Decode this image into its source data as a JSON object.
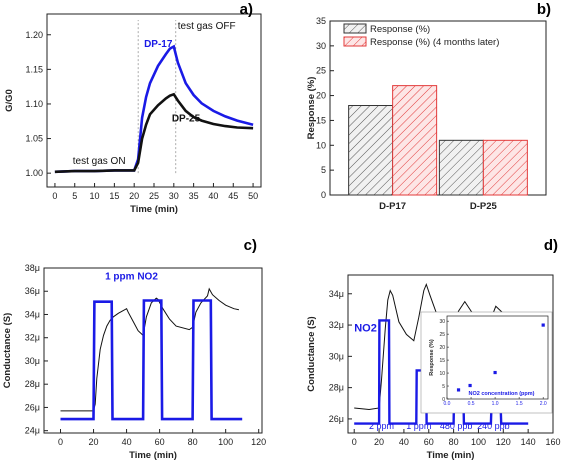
{
  "colors": {
    "blue": "#1a1ae6",
    "black": "#111111",
    "red": "#e23a3a",
    "hatch_red_bg": "#fde6e6",
    "hatch_gray_bg": "#f1f1f1"
  },
  "chart_data": [
    {
      "panel": "a)",
      "type": "line",
      "xlabel": "Time (min)",
      "ylabel": "G/G0",
      "xlim": [
        -2,
        52
      ],
      "ylim": [
        0.98,
        1.23
      ],
      "xticks": [
        0,
        5,
        10,
        15,
        20,
        25,
        30,
        35,
        40,
        45,
        50
      ],
      "yticks": [
        1.0,
        1.05,
        1.1,
        1.15,
        1.2
      ],
      "ytick_labels": [
        "1.00",
        "1.05",
        "1.10",
        "1.15",
        "1.20"
      ],
      "vlines": [
        21,
        30.5
      ],
      "annotations": [
        {
          "id": "gas_on",
          "text": "test gas ON",
          "x": 4.5,
          "y": 1.013
        },
        {
          "id": "gas_off",
          "text": "test gas OFF",
          "x": 31,
          "y": 1.208
        }
      ],
      "series": [
        {
          "name": "DP-17",
          "color": "#1a1ae6",
          "points": [
            [
              0,
              1.002
            ],
            [
              5,
              1.003
            ],
            [
              10,
              1.003
            ],
            [
              15,
              1.004
            ],
            [
              19,
              1.004
            ],
            [
              20,
              1.004
            ],
            [
              21,
              1.02
            ],
            [
              22,
              1.08
            ],
            [
              23,
              1.11
            ],
            [
              24,
              1.13
            ],
            [
              26,
              1.155
            ],
            [
              28,
              1.172
            ],
            [
              29,
              1.18
            ],
            [
              30,
              1.183
            ],
            [
              31,
              1.16
            ],
            [
              33,
              1.13
            ],
            [
              35,
              1.113
            ],
            [
              37,
              1.101
            ],
            [
              40,
              1.09
            ],
            [
              43,
              1.082
            ],
            [
              46,
              1.076
            ],
            [
              50,
              1.07
            ]
          ]
        },
        {
          "name": "DP-25",
          "color": "#111111",
          "points": [
            [
              0,
              1.002
            ],
            [
              5,
              1.003
            ],
            [
              10,
              1.003
            ],
            [
              15,
              1.004
            ],
            [
              19,
              1.004
            ],
            [
              20,
              1.004
            ],
            [
              21,
              1.015
            ],
            [
              22,
              1.05
            ],
            [
              23,
              1.07
            ],
            [
              24,
              1.085
            ],
            [
              26,
              1.098
            ],
            [
              28,
              1.108
            ],
            [
              29,
              1.112
            ],
            [
              30,
              1.114
            ],
            [
              31,
              1.105
            ],
            [
              33,
              1.09
            ],
            [
              35,
              1.081
            ],
            [
              37,
              1.076
            ],
            [
              40,
              1.071
            ],
            [
              43,
              1.068
            ],
            [
              46,
              1.066
            ],
            [
              50,
              1.065
            ]
          ]
        }
      ]
    },
    {
      "panel": "b)",
      "type": "bar",
      "xlabel": "",
      "ylabel": "Response (%)",
      "ylim": [
        0,
        35
      ],
      "yticks": [
        0,
        5,
        10,
        15,
        20,
        25,
        30,
        35
      ],
      "categories": [
        "D-P17",
        "D-P25"
      ],
      "series": [
        {
          "name": "Response (%)",
          "color": "#333333",
          "values": [
            18,
            11
          ]
        },
        {
          "name": "Response (%) (4 months later)",
          "color": "#e23a3a",
          "values": [
            22,
            11
          ]
        }
      ]
    },
    {
      "panel": "c)",
      "type": "line",
      "xlabel": "Time (min)",
      "ylabel": "Conductance (S)",
      "xlim": [
        -10,
        122
      ],
      "ylim": [
        23.8,
        38
      ],
      "xticks": [
        0,
        20,
        40,
        60,
        80,
        100,
        120
      ],
      "yticks": [
        24,
        26,
        28,
        30,
        32,
        34,
        36,
        38
      ],
      "ytick_labels": [
        "24μ",
        "26μ",
        "28μ",
        "30μ",
        "32μ",
        "34μ",
        "36μ",
        "38μ"
      ],
      "annotation": "1 ppm NO2",
      "series": [
        {
          "name": "",
          "color": "#111111",
          "points": [
            [
              0,
              25.7
            ],
            [
              10,
              25.7
            ],
            [
              20,
              25.7
            ],
            [
              21,
              26.3
            ],
            [
              22,
              28.5
            ],
            [
              24,
              31
            ],
            [
              26,
              32.2
            ],
            [
              28,
              33
            ],
            [
              30,
              33.5
            ],
            [
              32,
              33.8
            ],
            [
              35,
              34.1
            ],
            [
              40,
              34.5
            ],
            [
              41,
              34.2
            ],
            [
              44,
              33.4
            ],
            [
              47,
              32.6
            ],
            [
              50,
              32.2
            ],
            [
              52,
              33.8
            ],
            [
              55,
              35.0
            ],
            [
              58,
              35.4
            ],
            [
              59,
              35.3
            ],
            [
              62,
              34.5
            ],
            [
              66,
              33.6
            ],
            [
              70,
              33.0
            ],
            [
              78,
              32.7
            ],
            [
              80,
              32.9
            ],
            [
              82,
              34.2
            ],
            [
              85,
              35.0
            ],
            [
              89,
              35.6
            ],
            [
              90,
              36.2
            ],
            [
              92,
              35.7
            ],
            [
              96,
              35.2
            ],
            [
              100,
              34.8
            ],
            [
              105,
              34.5
            ],
            [
              108,
              34.4
            ]
          ]
        },
        {
          "name": "",
          "color": "#1a1ae6",
          "points": [
            [
              0,
              25.0
            ],
            [
              20,
              25.0
            ],
            [
              20.5,
              35.1
            ],
            [
              31,
              35.1
            ],
            [
              31.5,
              25.0
            ],
            [
              50,
              25.0
            ],
            [
              50.5,
              35.2
            ],
            [
              61,
              35.2
            ],
            [
              61.5,
              25.0
            ],
            [
              80,
              25.0
            ],
            [
              80.5,
              35.2
            ],
            [
              91,
              35.2
            ],
            [
              91.5,
              25.0
            ],
            [
              110,
              25.0
            ]
          ]
        }
      ]
    },
    {
      "panel": "d)",
      "type": "line",
      "xlabel": "Time (min)",
      "ylabel": "Conductance (S)",
      "xlim": [
        -5,
        160
      ],
      "ylim": [
        25.1,
        35.2
      ],
      "xticks": [
        0,
        20,
        40,
        60,
        80,
        100,
        120,
        140,
        160
      ],
      "yticks": [
        26,
        28,
        30,
        32,
        34
      ],
      "ytick_labels": [
        "26μ",
        "28μ",
        "30μ",
        "32μ",
        "34μ"
      ],
      "annotation": "NO2",
      "concentration_labels": [
        "2 ppm",
        "1 ppm",
        "480 ppb",
        "240 ppb"
      ],
      "series": [
        {
          "name": "",
          "color": "#111111",
          "points": [
            [
              0,
              26.7
            ],
            [
              12,
              26.6
            ],
            [
              20,
              26.7
            ],
            [
              22,
              28.5
            ],
            [
              25,
              31.8
            ],
            [
              27,
              33.6
            ],
            [
              29,
              34.2
            ],
            [
              31,
              33.9
            ],
            [
              36,
              32.2
            ],
            [
              42,
              31.4
            ],
            [
              48,
              31.0
            ],
            [
              52,
              32.5
            ],
            [
              56,
              34.2
            ],
            [
              58,
              34.6
            ],
            [
              61,
              33.9
            ],
            [
              66,
              32.8
            ],
            [
              72,
              31.9
            ],
            [
              77,
              31.5
            ],
            [
              80,
              32.1
            ],
            [
              84,
              32.9
            ],
            [
              89,
              33.5
            ],
            [
              94,
              32.9
            ],
            [
              98,
              32.4
            ],
            [
              105,
              32.0
            ],
            [
              110,
              32.4
            ],
            [
              114,
              33.2
            ],
            [
              118,
              32.9
            ],
            [
              124,
              32.4
            ],
            [
              130,
              32.0
            ],
            [
              135,
              31.7
            ]
          ]
        },
        {
          "name": "",
          "color": "#1a1ae6",
          "points": [
            [
              0,
              25.7
            ],
            [
              20,
              25.7
            ],
            [
              20.3,
              32.3
            ],
            [
              28,
              32.3
            ],
            [
              28.3,
              25.7
            ],
            [
              50,
              25.7
            ],
            [
              50.3,
              29.1
            ],
            [
              58,
              29.1
            ],
            [
              58.3,
              25.7
            ],
            [
              80,
              25.7
            ],
            [
              80.3,
              27.2
            ],
            [
              88,
              27.2
            ],
            [
              88.3,
              25.7
            ],
            [
              110,
              25.7
            ],
            [
              110.3,
              26.5
            ],
            [
              118,
              26.5
            ],
            [
              118.3,
              25.7
            ],
            [
              140,
              25.7
            ]
          ]
        }
      ],
      "inset": {
        "type": "scatter",
        "xlabel": "NO2 concentration (ppm)",
        "ylabel": "Response (%)",
        "xlim": [
          0,
          2.1
        ],
        "ylim": [
          0,
          32
        ],
        "xticks": [
          0.0,
          0.5,
          1.0,
          1.5,
          2.0
        ],
        "xtick_labels": [
          "0.0",
          "0.5",
          "1.0",
          "1.5",
          "2.0"
        ],
        "yticks": [
          0,
          5,
          10,
          15,
          20,
          25,
          30
        ],
        "points": [
          [
            0.24,
            3.5
          ],
          [
            0.48,
            5.2
          ],
          [
            1.0,
            10.2
          ],
          [
            2.0,
            28.5
          ]
        ]
      }
    }
  ]
}
